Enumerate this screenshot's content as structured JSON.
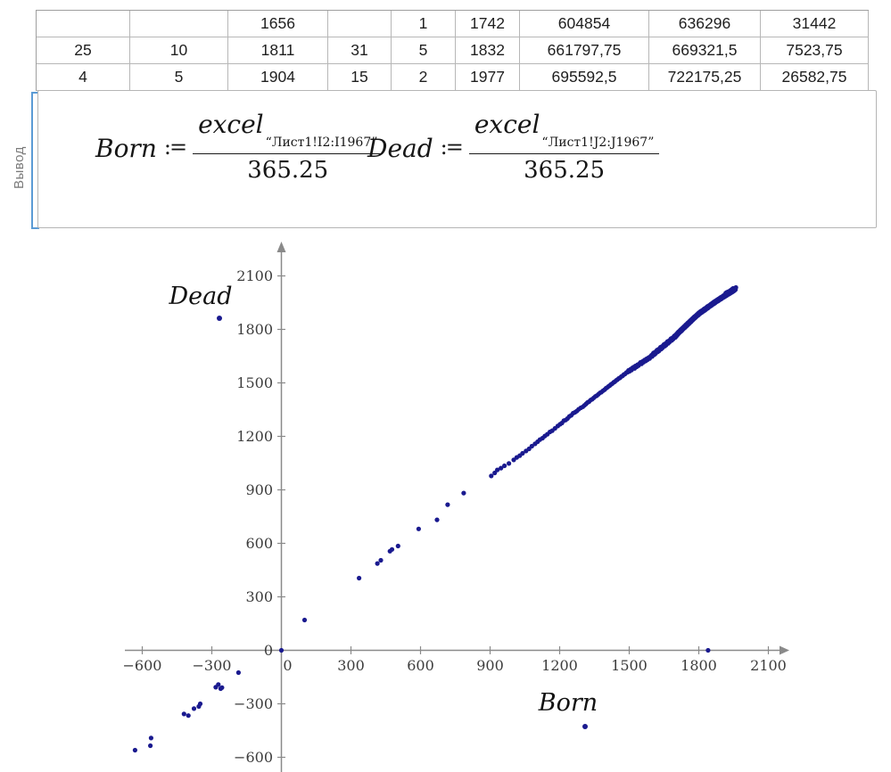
{
  "region_label": "Вывод",
  "table": {
    "rows": [
      [
        "",
        "",
        "1656",
        "",
        "1",
        "1742",
        "604854",
        "636296",
        "31442"
      ],
      [
        "25",
        "10",
        "1811",
        "31",
        "5",
        "1832",
        "661797,75",
        "669321,5",
        "7523,75"
      ],
      [
        "4",
        "5",
        "1904",
        "15",
        "2",
        "1977",
        "695592,5",
        "722175,25",
        "26582,75"
      ]
    ]
  },
  "math": {
    "born": {
      "name": "Born",
      "assign": ":=",
      "numerator": "excel",
      "subscript": "“Лист1!I2:I1967”",
      "denominator": "365.25"
    },
    "dead": {
      "name": "Dead",
      "assign": ":=",
      "numerator": "excel",
      "subscript": "“Лист1!J2:J1967”",
      "denominator": "365.25"
    }
  },
  "chart_data": {
    "type": "scatter",
    "xlabel": "Born",
    "ylabel": "Dead",
    "xlim": [
      -750,
      2300
    ],
    "ylim": [
      -680,
      2270
    ],
    "x_ticks": [
      -600,
      -300,
      0,
      300,
      600,
      900,
      1200,
      1500,
      1800,
      2100
    ],
    "y_ticks": [
      2100,
      1800,
      1500,
      1200,
      900,
      600,
      300,
      0,
      -300,
      -600
    ],
    "grid": false,
    "legend_position": "axis-labels",
    "marker_color": "#1a1a8f",
    "axis_color": "#8a8a8a",
    "points": [
      [
        -631,
        -560
      ],
      [
        -565,
        -535
      ],
      [
        -562,
        -492
      ],
      [
        -420,
        -357
      ],
      [
        -401,
        -366
      ],
      [
        -377,
        -327
      ],
      [
        -356,
        -315
      ],
      [
        -350,
        -300
      ],
      [
        -283,
        -207
      ],
      [
        -272,
        -192
      ],
      [
        -262,
        -215
      ],
      [
        -256,
        -209
      ],
      [
        -185,
        -125
      ],
      [
        0,
        0
      ],
      [
        100,
        170
      ],
      [
        1840,
        0
      ],
      [
        335,
        405
      ],
      [
        414,
        487
      ],
      [
        429,
        505
      ],
      [
        468,
        556
      ],
      [
        477,
        566
      ],
      [
        503,
        585
      ],
      [
        592,
        681
      ],
      [
        671,
        732
      ],
      [
        717,
        817
      ],
      [
        786,
        882
      ],
      [
        905,
        978
      ],
      [
        920,
        995
      ],
      [
        931,
        1012
      ],
      [
        947,
        1022
      ],
      [
        962,
        1035
      ],
      [
        981,
        1048
      ],
      [
        1002,
        1068
      ],
      [
        1015,
        1082
      ],
      [
        1028,
        1092
      ],
      [
        1040,
        1105
      ],
      [
        1055,
        1118
      ],
      [
        1068,
        1130
      ],
      [
        1080,
        1145
      ],
      [
        1094,
        1158
      ],
      [
        1105,
        1170
      ],
      [
        1115,
        1182
      ],
      [
        1126,
        1190
      ],
      [
        1136,
        1202
      ],
      [
        1147,
        1212
      ],
      [
        1158,
        1225
      ],
      [
        1168,
        1232
      ],
      [
        1180,
        1245
      ],
      [
        1192,
        1258
      ],
      [
        1202,
        1268
      ],
      [
        1210,
        1275
      ],
      [
        1218,
        1288
      ],
      [
        1226,
        1292
      ],
      [
        1234,
        1300
      ],
      [
        1242,
        1312
      ],
      [
        1250,
        1318
      ],
      [
        1258,
        1330
      ],
      [
        1266,
        1335
      ],
      [
        1274,
        1342
      ],
      [
        1282,
        1352
      ],
      [
        1291,
        1360
      ],
      [
        1300,
        1366
      ],
      [
        1307,
        1374
      ],
      [
        1314,
        1382
      ],
      [
        1320,
        1390
      ],
      [
        1327,
        1395
      ],
      [
        1334,
        1404
      ],
      [
        1340,
        1408
      ],
      [
        1347,
        1416
      ],
      [
        1354,
        1424
      ],
      [
        1360,
        1428
      ],
      [
        1367,
        1436
      ],
      [
        1374,
        1444
      ],
      [
        1380,
        1448
      ],
      [
        1387,
        1456
      ],
      [
        1394,
        1462
      ],
      [
        1400,
        1470
      ],
      [
        1405,
        1474
      ],
      [
        1411,
        1481
      ],
      [
        1416,
        1485
      ],
      [
        1422,
        1492
      ],
      [
        1427,
        1496
      ],
      [
        1433,
        1503
      ],
      [
        1438,
        1507
      ],
      [
        1444,
        1514
      ],
      [
        1449,
        1518
      ],
      [
        1455,
        1525
      ],
      [
        1460,
        1528
      ],
      [
        1466,
        1536
      ],
      [
        1471,
        1539
      ],
      [
        1477,
        1547
      ],
      [
        1482,
        1550
      ],
      [
        1488,
        1558
      ],
      [
        1493,
        1560
      ],
      [
        1497,
        1570
      ],
      [
        1501,
        1565
      ],
      [
        1506,
        1577
      ],
      [
        1510,
        1572
      ],
      [
        1514,
        1584
      ],
      [
        1519,
        1588
      ],
      [
        1523,
        1581
      ],
      [
        1527,
        1595
      ],
      [
        1532,
        1590
      ],
      [
        1536,
        1602
      ],
      [
        1540,
        1597
      ],
      [
        1545,
        1609
      ],
      [
        1549,
        1615
      ],
      [
        1553,
        1607
      ],
      [
        1558,
        1621
      ],
      [
        1562,
        1616
      ],
      [
        1566,
        1628
      ],
      [
        1571,
        1623
      ],
      [
        1575,
        1635
      ],
      [
        1579,
        1630
      ],
      [
        1584,
        1642
      ],
      [
        1588,
        1637
      ],
      [
        1592,
        1649
      ],
      [
        1596,
        1655
      ],
      [
        1599,
        1648
      ],
      [
        1602,
        1662
      ],
      [
        1605,
        1668
      ],
      [
        1608,
        1658
      ],
      [
        1611,
        1672
      ],
      [
        1614,
        1665
      ],
      [
        1617,
        1678
      ],
      [
        1620,
        1684
      ],
      [
        1623,
        1674
      ],
      [
        1626,
        1688
      ],
      [
        1629,
        1680
      ],
      [
        1632,
        1694
      ],
      [
        1635,
        1700
      ],
      [
        1638,
        1690
      ],
      [
        1641,
        1704
      ],
      [
        1644,
        1697
      ],
      [
        1647,
        1710
      ],
      [
        1650,
        1716
      ],
      [
        1653,
        1706
      ],
      [
        1656,
        1720
      ],
      [
        1659,
        1712
      ],
      [
        1662,
        1726
      ],
      [
        1665,
        1732
      ],
      [
        1668,
        1722
      ],
      [
        1671,
        1736
      ],
      [
        1674,
        1729
      ],
      [
        1677,
        1742
      ],
      [
        1680,
        1748
      ],
      [
        1683,
        1738
      ],
      [
        1686,
        1752
      ],
      [
        1689,
        1745
      ],
      [
        1692,
        1758
      ],
      [
        1695,
        1764
      ],
      [
        1698,
        1754
      ],
      [
        1700,
        1768
      ],
      [
        1702,
        1760
      ],
      [
        1704,
        1774
      ],
      [
        1706,
        1766
      ],
      [
        1708,
        1780
      ],
      [
        1710,
        1772
      ],
      [
        1712,
        1786
      ],
      [
        1714,
        1778
      ],
      [
        1716,
        1790
      ],
      [
        1718,
        1783
      ],
      [
        1720,
        1796
      ],
      [
        1722,
        1788
      ],
      [
        1724,
        1800
      ],
      [
        1726,
        1792
      ],
      [
        1728,
        1806
      ],
      [
        1730,
        1798
      ],
      [
        1732,
        1810
      ],
      [
        1734,
        1803
      ],
      [
        1736,
        1816
      ],
      [
        1738,
        1808
      ],
      [
        1740,
        1820
      ],
      [
        1742,
        1812
      ],
      [
        1744,
        1826
      ],
      [
        1746,
        1818
      ],
      [
        1748,
        1830
      ],
      [
        1750,
        1822
      ],
      [
        1752,
        1836
      ],
      [
        1754,
        1828
      ],
      [
        1756,
        1840
      ],
      [
        1758,
        1832
      ],
      [
        1760,
        1845
      ],
      [
        1762,
        1838
      ],
      [
        1764,
        1850
      ],
      [
        1766,
        1842
      ],
      [
        1768,
        1855
      ],
      [
        1770,
        1848
      ],
      [
        1772,
        1860
      ],
      [
        1774,
        1852
      ],
      [
        1776,
        1865
      ],
      [
        1778,
        1858
      ],
      [
        1780,
        1870
      ],
      [
        1782,
        1862
      ],
      [
        1784,
        1874
      ],
      [
        1786,
        1867
      ],
      [
        1788,
        1878
      ],
      [
        1790,
        1872
      ],
      [
        1792,
        1883
      ],
      [
        1794,
        1876
      ],
      [
        1796,
        1888
      ],
      [
        1798,
        1880
      ],
      [
        1800,
        1893
      ],
      [
        1802,
        1885
      ],
      [
        1805,
        1898
      ],
      [
        1807,
        1890
      ],
      [
        1809,
        1902
      ],
      [
        1812,
        1894
      ],
      [
        1814,
        1906
      ],
      [
        1816,
        1898
      ],
      [
        1819,
        1910
      ],
      [
        1821,
        1903
      ],
      [
        1823,
        1915
      ],
      [
        1826,
        1907
      ],
      [
        1828,
        1919
      ],
      [
        1830,
        1911
      ],
      [
        1833,
        1923
      ],
      [
        1835,
        1916
      ],
      [
        1837,
        1928
      ],
      [
        1840,
        1920
      ],
      [
        1842,
        1932
      ],
      [
        1844,
        1925
      ],
      [
        1847,
        1936
      ],
      [
        1849,
        1929
      ],
      [
        1851,
        1941
      ],
      [
        1854,
        1933
      ],
      [
        1856,
        1945
      ],
      [
        1858,
        1938
      ],
      [
        1861,
        1950
      ],
      [
        1863,
        1942
      ],
      [
        1865,
        1954
      ],
      [
        1868,
        1946
      ],
      [
        1870,
        1958
      ],
      [
        1872,
        1950
      ],
      [
        1875,
        1962
      ],
      [
        1877,
        1955
      ],
      [
        1879,
        1966
      ],
      [
        1882,
        1958
      ],
      [
        1884,
        1970
      ],
      [
        1886,
        1962
      ],
      [
        1889,
        1974
      ],
      [
        1891,
        1967
      ],
      [
        1893,
        1978
      ],
      [
        1896,
        1970
      ],
      [
        1898,
        1982
      ],
      [
        1900,
        1974
      ],
      [
        1903,
        1986
      ],
      [
        1905,
        1978
      ],
      [
        1907,
        1990
      ],
      [
        1910,
        1982
      ],
      [
        1912,
        1994
      ],
      [
        1915,
        1986
      ],
      [
        1917,
        1998
      ],
      [
        1920,
        1990
      ],
      [
        1922,
        2002
      ],
      [
        1925,
        1994
      ],
      [
        1927,
        2006
      ],
      [
        1930,
        1998
      ],
      [
        1932,
        2010
      ],
      [
        1935,
        2002
      ],
      [
        1937,
        2014
      ],
      [
        1940,
        2006
      ],
      [
        1942,
        2018
      ],
      [
        1945,
        2010
      ],
      [
        1947,
        2022
      ],
      [
        1950,
        2014
      ],
      [
        1952,
        2026
      ],
      [
        1954,
        2018
      ],
      [
        1956,
        2030
      ],
      [
        1958,
        2023
      ],
      [
        1960,
        2035
      ],
      [
        1948,
        2030
      ],
      [
        1944,
        2026
      ],
      [
        1938,
        2020
      ],
      [
        1934,
        2016
      ],
      [
        1928,
        2012
      ],
      [
        1921,
        2008
      ],
      [
        1916,
        2004
      ]
    ]
  }
}
